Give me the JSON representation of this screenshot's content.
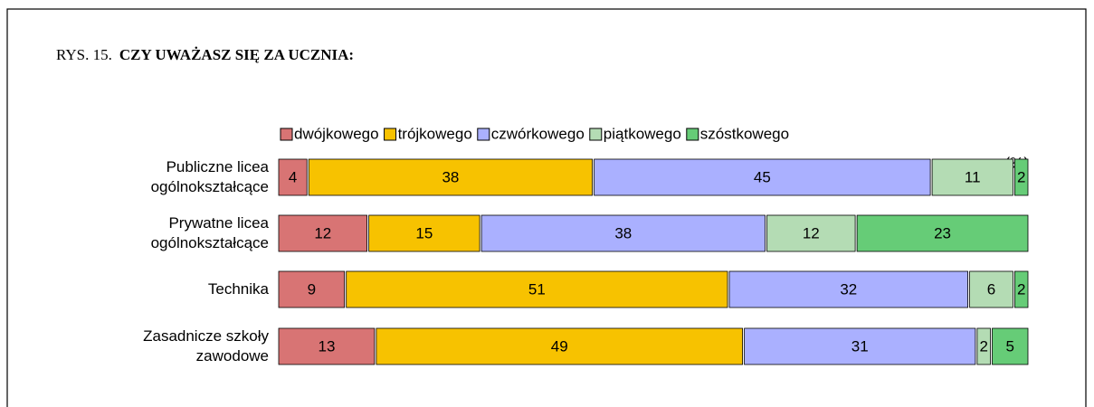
{
  "chart_data": {
    "type": "stacked-bar-horizontal",
    "figure_label": "RYS. 15.",
    "title": "CZY UWAŻASZ SIĘ ZA UCZNIA:",
    "unit_label": "(%)",
    "categories": [
      "Publiczne licea ogólnokształcące",
      "Prywatne licea ogólnokształcące",
      "Technika",
      "Zasadnicze szkoły zawodowe"
    ],
    "series": [
      {
        "name": "dwójkowego",
        "color": "#d87474",
        "values": [
          4,
          12,
          9,
          13
        ]
      },
      {
        "name": "trójkowego",
        "color": "#f7c200",
        "values": [
          38,
          15,
          51,
          49
        ]
      },
      {
        "name": "czwórkowego",
        "color": "#aab0ff",
        "values": [
          45,
          38,
          32,
          31
        ]
      },
      {
        "name": "piątkowego",
        "color": "#b4dcb4",
        "values": [
          11,
          12,
          6,
          2
        ]
      },
      {
        "name": "szóstkowego",
        "color": "#66cc77",
        "values": [
          2,
          23,
          2,
          5
        ]
      }
    ],
    "xlim": [
      0,
      100
    ]
  }
}
